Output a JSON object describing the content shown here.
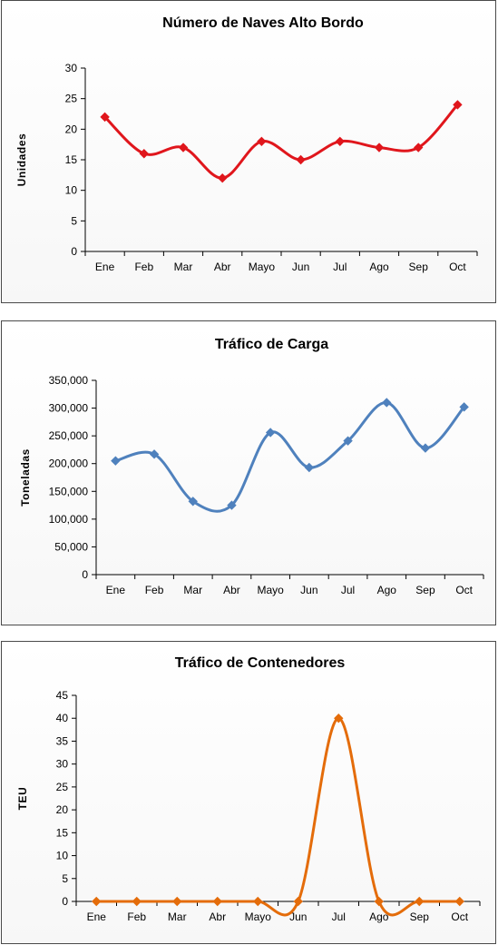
{
  "chart_data": [
    {
      "type": "line",
      "title": "Número de Naves Alto Bordo",
      "ylabel": "Unidades",
      "xlabel": "",
      "categories": [
        "Ene",
        "Feb",
        "Mar",
        "Abr",
        "Mayo",
        "Jun",
        "Jul",
        "Ago",
        "Sep",
        "Oct"
      ],
      "series": [
        {
          "values": [
            22,
            16,
            17,
            12,
            18,
            15,
            18,
            17,
            17,
            24
          ],
          "color": "#e0161c"
        }
      ],
      "ylim": [
        0,
        30
      ],
      "yticks": [
        0,
        5,
        10,
        15,
        20,
        25,
        30
      ],
      "ytick_labels": [
        "0",
        "5",
        "10",
        "15",
        "20",
        "25",
        "30"
      ],
      "grid": false,
      "legend": "none",
      "marker": "diamond",
      "smooth": true
    },
    {
      "type": "line",
      "title": "Tráfico de Carga",
      "ylabel": "Toneladas",
      "xlabel": "",
      "categories": [
        "Ene",
        "Feb",
        "Mar",
        "Abr",
        "Mayo",
        "Jun",
        "Jul",
        "Ago",
        "Sep",
        "Oct"
      ],
      "series": [
        {
          "values": [
            205000,
            217000,
            132000,
            125000,
            256000,
            193000,
            241000,
            310000,
            228000,
            302000
          ],
          "color": "#4f81bd"
        }
      ],
      "ylim": [
        0,
        350000
      ],
      "yticks": [
        0,
        50000,
        100000,
        150000,
        200000,
        250000,
        300000,
        350000
      ],
      "ytick_labels": [
        "0",
        "50,000",
        "100,000",
        "150,000",
        "200,000",
        "250,000",
        "300,000",
        "350,000"
      ],
      "grid": false,
      "legend": "none",
      "marker": "diamond",
      "smooth": true
    },
    {
      "type": "line",
      "title": "Tráfico de Contenedores",
      "ylabel": "TEU",
      "xlabel": "",
      "categories": [
        "Ene",
        "Feb",
        "Mar",
        "Abr",
        "Mayo",
        "Jun",
        "Jul",
        "Ago",
        "Sep",
        "Oct"
      ],
      "series": [
        {
          "values": [
            0,
            0,
            0,
            0,
            0,
            0,
            40,
            0,
            0,
            0
          ],
          "color": "#e46c0a"
        }
      ],
      "ylim": [
        0,
        45
      ],
      "yticks": [
        0,
        5,
        10,
        15,
        20,
        25,
        30,
        35,
        40,
        45
      ],
      "ytick_labels": [
        "0",
        "5",
        "10",
        "15",
        "20",
        "25",
        "30",
        "35",
        "40",
        "45"
      ],
      "grid": false,
      "legend": "none",
      "marker": "diamond",
      "smooth": true
    }
  ]
}
